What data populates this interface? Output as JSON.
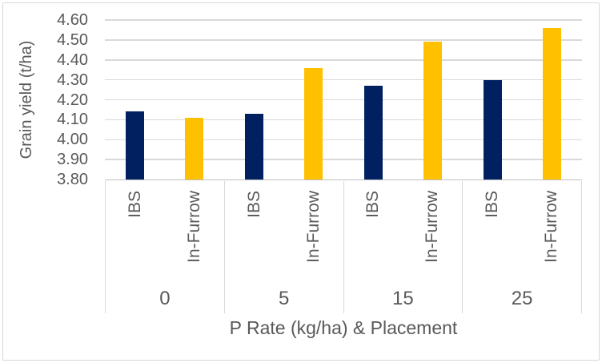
{
  "chart_data": {
    "type": "bar",
    "title": "",
    "xlabel": "P Rate (kg/ha) & Placement",
    "ylabel": "Grain yield (t/ha)",
    "categories": [
      "0",
      "5",
      "15",
      "25"
    ],
    "series": [
      {
        "name": "IBS",
        "color": "#002060",
        "values": [
          4.14,
          4.13,
          4.27,
          4.3
        ]
      },
      {
        "name": "In-Furrow",
        "color": "#FFC000",
        "values": [
          4.11,
          4.36,
          4.49,
          4.56
        ]
      }
    ],
    "ylim": [
      3.8,
      4.6
    ],
    "ytick_step": 0.1,
    "yticks": [
      "4.60",
      "4.50",
      "4.40",
      "4.30",
      "4.20",
      "4.10",
      "4.00",
      "3.90",
      "3.80"
    ],
    "grid": true,
    "legend": "none",
    "colors": {
      "text": "#595959",
      "gridline": "#D9D9D9",
      "axis_line": "#BFBFBF",
      "frame_border": "#D9D9D9",
      "background": "#FFFFFF"
    }
  }
}
